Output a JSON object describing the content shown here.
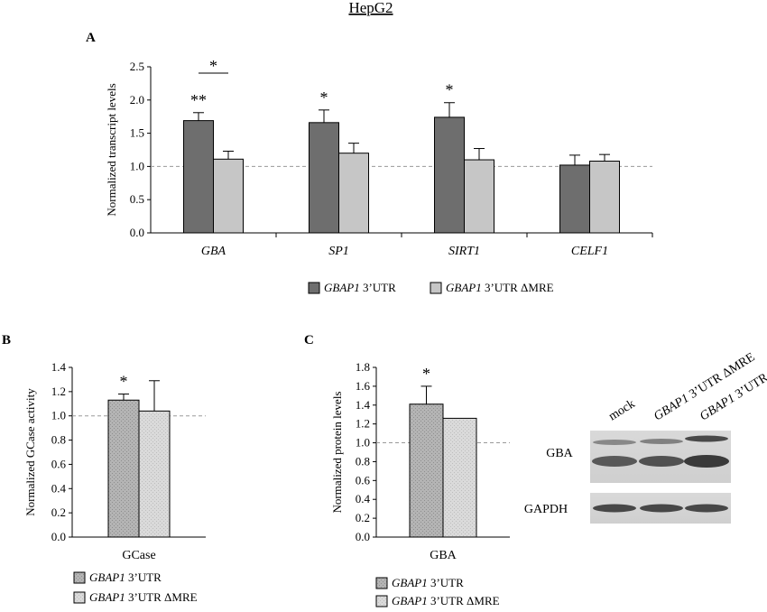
{
  "figure": {
    "title": "HepG2",
    "panel_a": "A",
    "panel_b": "B",
    "panel_c": "C",
    "blot_gene_label": "GBA",
    "blot_loading_label": "GAPDH",
    "blot_lanes": [
      {
        "italic": "",
        "plain": "mock"
      },
      {
        "italic": "GBAP1",
        "plain": " 3’UTR ΔMRE"
      },
      {
        "italic": "GBAP1",
        "plain": " 3’UTR"
      }
    ]
  },
  "colors": {
    "dark_bar": "#6e6e6e",
    "light_bar": "#c6c6c6",
    "textured_dark": "#b4b4b4",
    "textured_light": "#dadada",
    "reference_line": "#9a9a9a"
  },
  "chart_data": [
    {
      "type": "bar",
      "categories": [
        "GBA",
        "SP1",
        "SIRT1",
        "CELF1"
      ],
      "categories_italic": true,
      "series": [
        {
          "name_italic": "GBAP1",
          "name_plain": " 3’UTR",
          "values": [
            1.69,
            1.66,
            1.74,
            1.02
          ],
          "errors": [
            0.12,
            0.19,
            0.22,
            0.15
          ]
        },
        {
          "name_italic": "GBAP1",
          "name_plain": " 3’UTR ΔMRE",
          "values": [
            1.11,
            1.2,
            1.1,
            1.08
          ],
          "errors": [
            0.12,
            0.15,
            0.17,
            0.1
          ]
        }
      ],
      "ylabel": "Normalized transcript levels",
      "ylim": [
        0,
        2.5
      ],
      "yticks": [
        "0.0",
        "0.5",
        "1.0",
        "1.5",
        "2.0",
        "2.5"
      ],
      "reference_line": 1.0,
      "annotations": [
        {
          "category": 0,
          "series": 0,
          "text": "**"
        },
        {
          "category": 0,
          "bracket": true,
          "text": "*"
        },
        {
          "category": 1,
          "series": 0,
          "text": "*"
        },
        {
          "category": 2,
          "series": 0,
          "text": "*"
        }
      ],
      "legend_position": "bottom"
    },
    {
      "type": "bar",
      "categories": [
        "GCase"
      ],
      "series": [
        {
          "name_italic": "GBAP1",
          "name_plain": " 3’UTR",
          "values": [
            1.13
          ],
          "errors": [
            0.05
          ]
        },
        {
          "name_italic": "GBAP1",
          "name_plain": " 3’UTR ΔMRE",
          "values": [
            1.04
          ],
          "errors": [
            0.25
          ]
        }
      ],
      "ylabel": "Normalized GCase activity",
      "ylim": [
        0,
        1.4
      ],
      "yticks": [
        "0.0",
        "0.2",
        "0.4",
        "0.6",
        "0.8",
        "1.0",
        "1.2",
        "1.4"
      ],
      "reference_line": 1.0,
      "annotations": [
        {
          "category": 0,
          "series": 0,
          "text": "*"
        }
      ],
      "legend_position": "bottom"
    },
    {
      "type": "bar",
      "categories": [
        "GBA"
      ],
      "series": [
        {
          "name_italic": "GBAP1",
          "name_plain": " 3’UTR",
          "values": [
            1.41
          ],
          "errors": [
            0.19
          ]
        },
        {
          "name_italic": "GBAP1",
          "name_plain": " 3’UTR ΔMRE",
          "values": [
            1.26
          ],
          "errors": [
            0
          ]
        }
      ],
      "ylabel": "Normalized protein levels",
      "ylim": [
        0,
        1.8
      ],
      "yticks": [
        "0.0",
        "0.2",
        "0.4",
        "0.6",
        "0.8",
        "1.0",
        "1.2",
        "1.4",
        "1.6",
        "1.8"
      ],
      "reference_line": 1.0,
      "annotations": [
        {
          "category": 0,
          "series": 0,
          "text": "*"
        }
      ],
      "legend_position": "bottom"
    }
  ]
}
